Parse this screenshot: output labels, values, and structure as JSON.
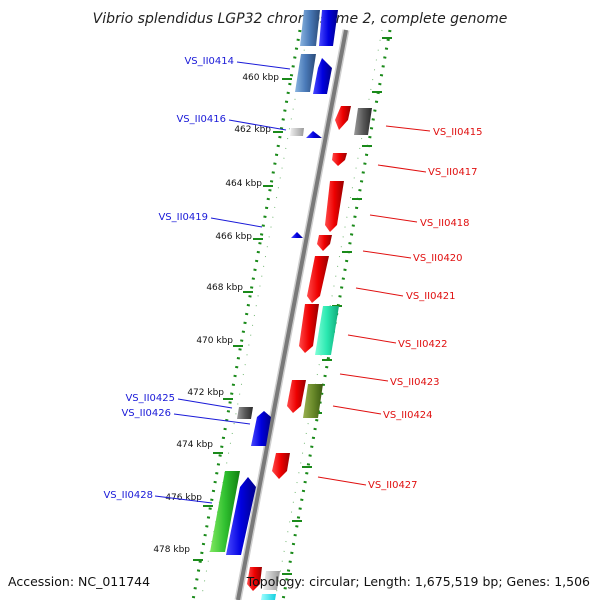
{
  "title": "Vibrio splendidus LGP32 chromosome 2, complete genome",
  "footer": {
    "accession": "Accession: NC_011744",
    "topology": "Topology: circular; Length: 1,675,519 bp; Genes: 1,506"
  },
  "ticks": [
    "460 kbp",
    "462 kbp",
    "464 kbp",
    "466 kbp",
    "468 kbp",
    "470 kbp",
    "472 kbp",
    "474 kbp",
    "476 kbp",
    "478 kbp"
  ],
  "left_labels": [
    "VS_II0414",
    "VS_II0416",
    "VS_II0419",
    "VS_II0425",
    "VS_II0426",
    "VS_II0428"
  ],
  "right_labels": [
    "VS_II0415",
    "VS_II0417",
    "VS_II0418",
    "VS_II0420",
    "VS_II0421",
    "VS_II0422",
    "VS_II0423",
    "VS_II0424",
    "VS_II0427"
  ],
  "colors": {
    "backbone": "#8a8a8a",
    "forward_gene": "#ee1111",
    "reverse_gene": "#1111ee",
    "track_dots": "#1a8a1a",
    "left_label": "#1a1ad8",
    "right_label": "#e01010"
  }
}
